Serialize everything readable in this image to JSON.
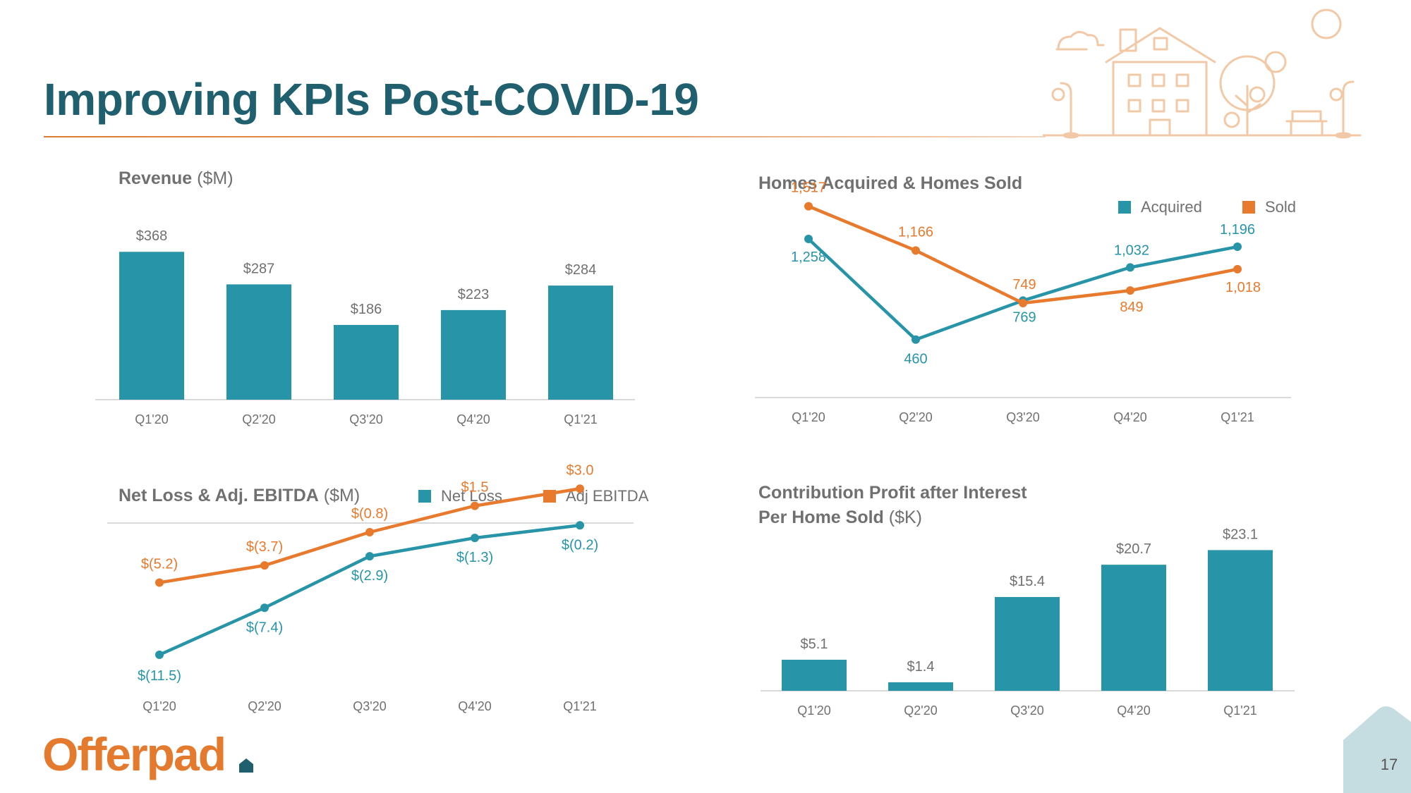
{
  "slide": {
    "title": "Improving KPIs Post-COVID-19",
    "page_number": "17",
    "logo_text": "Offerpad"
  },
  "headings": {
    "revenue_bold": "Revenue",
    "revenue_unit": "($M)",
    "homes_bold": "Homes Acquired & Homes Sold",
    "netloss_bold": "Net Loss & Adj. EBITDA",
    "netloss_unit": "($M)",
    "cp_bold_line1": "Contribution Profit after Interest",
    "cp_bold_line2": "Per Home Sold",
    "cp_unit": "($K)"
  },
  "colors": {
    "teal": "#2794a8",
    "orange": "#e87a2e",
    "title": "#1f5f6e"
  },
  "icons": [
    "house-illustration",
    "offerpad-house-icon"
  ],
  "chart_data": [
    {
      "id": "revenue",
      "type": "bar",
      "title": "Revenue ($M)",
      "categories": [
        "Q1'20",
        "Q2'20",
        "Q3'20",
        "Q4'20",
        "Q1'21"
      ],
      "values": [
        368,
        287,
        186,
        223,
        284
      ],
      "labels": [
        "$368",
        "$287",
        "$186",
        "$223",
        "$284"
      ],
      "ylim": [
        0,
        400
      ],
      "legend": "none"
    },
    {
      "id": "homes",
      "type": "line",
      "title": "Homes Acquired & Homes Sold",
      "categories": [
        "Q1'20",
        "Q2'20",
        "Q3'20",
        "Q4'20",
        "Q1'21"
      ],
      "series": [
        {
          "name": "Acquired",
          "values": [
            1258,
            460,
            769,
            1032,
            1196
          ],
          "labels": [
            "1,258",
            "460",
            "769",
            "1,032",
            "1,196"
          ]
        },
        {
          "name": "Sold",
          "values": [
            1517,
            1166,
            749,
            849,
            1018
          ],
          "labels": [
            "1,517",
            "1,166",
            "749",
            "849",
            "1,018"
          ]
        }
      ],
      "ylim": [
        0,
        1800
      ],
      "legend": "top-right"
    },
    {
      "id": "netloss",
      "type": "line",
      "title": "Net Loss & Adj. EBITDA ($M)",
      "categories": [
        "Q1'20",
        "Q2'20",
        "Q3'20",
        "Q4'20",
        "Q1'21"
      ],
      "series": [
        {
          "name": "Net Loss",
          "values": [
            -11.5,
            -7.4,
            -2.9,
            -1.3,
            -0.2
          ],
          "labels": [
            "$(11.5)",
            "$(7.4)",
            "$(2.9)",
            "$(1.3)",
            "$(0.2)"
          ]
        },
        {
          "name": "Adj EBITDA",
          "values": [
            -5.2,
            -3.7,
            -0.8,
            1.5,
            3.0
          ],
          "labels": [
            "$(5.2)",
            "$(3.7)",
            "$(0.8)",
            "$1.5",
            "$3.0"
          ]
        }
      ],
      "ylim": [
        -12,
        4
      ],
      "legend": "top-right"
    },
    {
      "id": "cp",
      "type": "bar",
      "title": "Contribution Profit after Interest Per Home Sold ($K)",
      "categories": [
        "Q1'20",
        "Q2'20",
        "Q3'20",
        "Q4'20",
        "Q1'21"
      ],
      "values": [
        5.1,
        1.4,
        15.4,
        20.7,
        23.1
      ],
      "labels": [
        "$5.1",
        "$1.4",
        "$15.4",
        "$20.7",
        "$23.1"
      ],
      "ylim": [
        0,
        25
      ],
      "legend": "none"
    }
  ]
}
